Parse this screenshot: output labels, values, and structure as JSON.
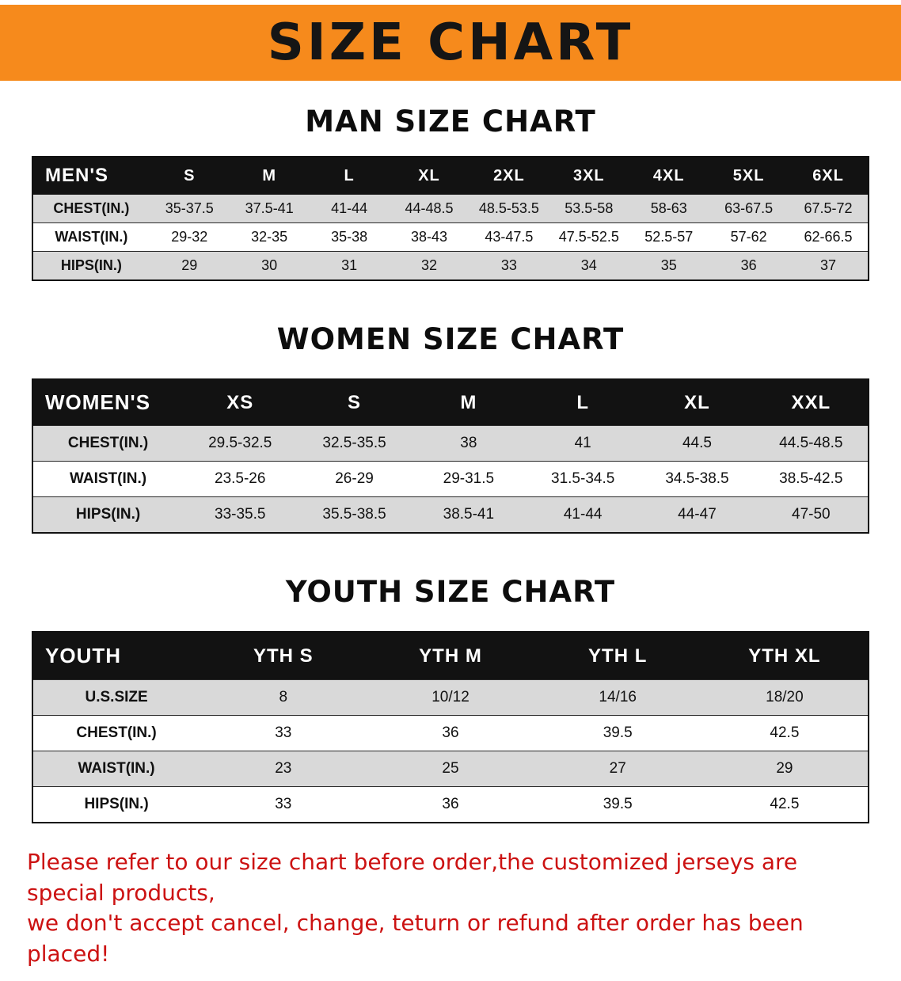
{
  "banner": {
    "title": "SIZE CHART",
    "bg_color": "#f68a1c",
    "text_color": "#151515"
  },
  "sections": [
    {
      "id": "men",
      "heading": "MAN SIZE CHART",
      "table": {
        "header": [
          "MEN'S",
          "S",
          "M",
          "L",
          "XL",
          "2XL",
          "3XL",
          "4XL",
          "5XL",
          "6XL"
        ],
        "rows": [
          [
            "CHEST(IN.)",
            "35-37.5",
            "37.5-41",
            "41-44",
            "44-48.5",
            "48.5-53.5",
            "53.5-58",
            "58-63",
            "63-67.5",
            "67.5-72"
          ],
          [
            "WAIST(IN.)",
            "29-32",
            "32-35",
            "35-38",
            "38-43",
            "43-47.5",
            "47.5-52.5",
            "52.5-57",
            "57-62",
            "62-66.5"
          ],
          [
            "HIPS(IN.)",
            "29",
            "30",
            "31",
            "32",
            "33",
            "34",
            "35",
            "36",
            "37"
          ]
        ]
      }
    },
    {
      "id": "women",
      "heading": "WOMEN SIZE CHART",
      "table": {
        "header": [
          "WOMEN'S",
          "XS",
          "S",
          "M",
          "L",
          "XL",
          "XXL"
        ],
        "rows": [
          [
            "CHEST(IN.)",
            "29.5-32.5",
            "32.5-35.5",
            "38",
            "41",
            "44.5",
            "44.5-48.5"
          ],
          [
            "WAIST(IN.)",
            "23.5-26",
            "26-29",
            "29-31.5",
            "31.5-34.5",
            "34.5-38.5",
            "38.5-42.5"
          ],
          [
            "HIPS(IN.)",
            "33-35.5",
            "35.5-38.5",
            "38.5-41",
            "41-44",
            "44-47",
            "47-50"
          ]
        ]
      }
    },
    {
      "id": "youth",
      "heading": "YOUTH SIZE CHART",
      "table": {
        "header": [
          "YOUTH",
          "YTH S",
          "YTH M",
          "YTH L",
          "YTH XL"
        ],
        "rows": [
          [
            "U.S.SIZE",
            "8",
            "10/12",
            "14/16",
            "18/20"
          ],
          [
            "CHEST(IN.)",
            "33",
            "36",
            "39.5",
            "42.5"
          ],
          [
            "WAIST(IN.)",
            "23",
            "25",
            "27",
            "29"
          ],
          [
            "HIPS(IN.)",
            "33",
            "36",
            "39.5",
            "42.5"
          ]
        ]
      }
    }
  ],
  "disclaimer": {
    "line1": "Please refer to our size chart before order,the customized jerseys are special products,",
    "line2": "we don't accept cancel, change, teturn or refund after order has been placed!",
    "color": "#cc1212"
  },
  "colors": {
    "header_row_bg": "#121212",
    "stripe_row_bg": "#d9d9d9",
    "banner_orange": "#f68a1c"
  }
}
